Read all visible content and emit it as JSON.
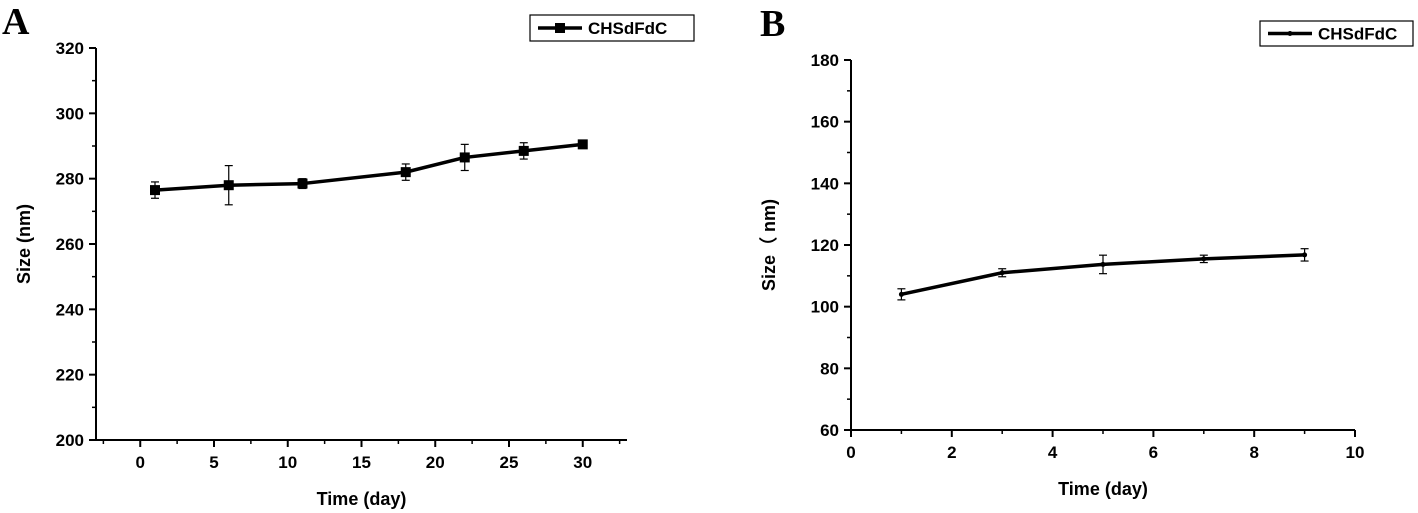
{
  "chart_data": [
    {
      "panel_label": "A",
      "type": "line",
      "title": "",
      "xlabel": "Time (day)",
      "ylabel": "Size (nm)",
      "xlim": [
        -3,
        33
      ],
      "ylim": [
        200,
        320
      ],
      "xticks": [
        0,
        5,
        10,
        15,
        20,
        25,
        30
      ],
      "yticks": [
        200,
        220,
        240,
        260,
        280,
        300,
        320
      ],
      "grid": false,
      "legend_position": "top-right",
      "marker": "square",
      "series": [
        {
          "name": "CHSdFdC",
          "x": [
            1,
            6,
            11,
            18,
            22,
            26,
            30
          ],
          "y": [
            276.5,
            278,
            278.5,
            282,
            286.5,
            288.5,
            290.5
          ],
          "error": [
            2.5,
            6,
            1.5,
            2.5,
            4,
            2.5,
            1
          ]
        }
      ]
    },
    {
      "panel_label": "B",
      "type": "line",
      "title": "",
      "xlabel": "Time (day)",
      "ylabel": "Size（ nm)",
      "xlim": [
        0,
        10
      ],
      "ylim": [
        60,
        180
      ],
      "xticks": [
        0,
        2,
        4,
        6,
        8,
        10
      ],
      "yticks": [
        60,
        80,
        100,
        120,
        140,
        160,
        180
      ],
      "grid": false,
      "legend_position": "top-right",
      "marker": "dot",
      "series": [
        {
          "name": "CHSdFdC",
          "x": [
            1,
            3,
            5,
            7,
            9
          ],
          "y": [
            104,
            111,
            113.7,
            115.5,
            116.8
          ],
          "error": [
            1.8,
            1.3,
            3,
            1.2,
            2
          ]
        }
      ]
    }
  ]
}
